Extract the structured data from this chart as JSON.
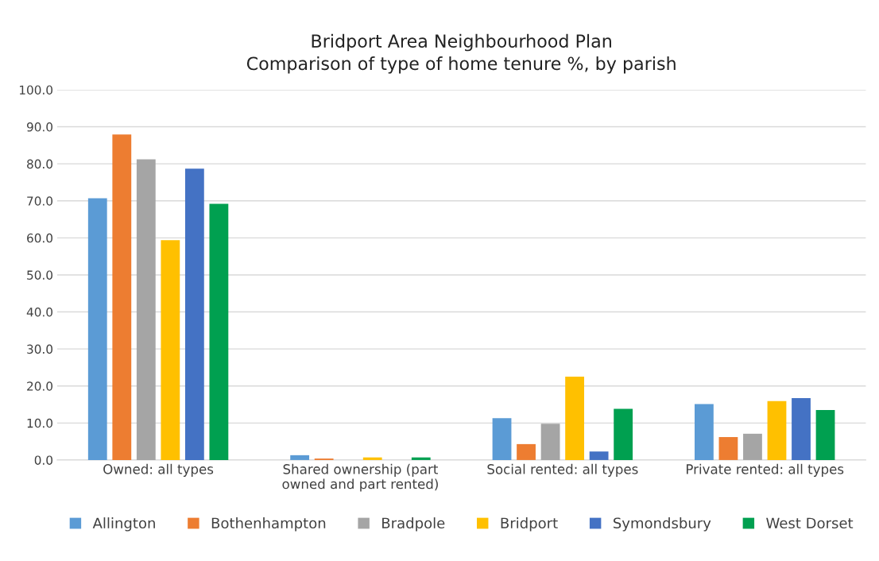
{
  "chart_data": {
    "type": "bar",
    "title": "Bridport Area Neighbourhood Plan\nComparison of type of home tenure %, by parish",
    "categories": [
      "Owned: all types",
      "Shared ownership (part\nowned and part rented)",
      "Social rented: all types",
      "Private rented: all types"
    ],
    "series": [
      {
        "name": "Allington",
        "color": "#5b9bd5",
        "values": [
          70.7,
          1.3,
          11.3,
          15.1
        ]
      },
      {
        "name": "Bothenhampton",
        "color": "#ed7d31",
        "values": [
          87.9,
          0.4,
          4.3,
          6.2
        ]
      },
      {
        "name": "Bradpole",
        "color": "#a5a5a5",
        "values": [
          81.2,
          0,
          9.8,
          7.1
        ]
      },
      {
        "name": "Bridport",
        "color": "#ffc000",
        "values": [
          59.4,
          0.7,
          22.5,
          15.9
        ]
      },
      {
        "name": "Symondsbury",
        "color": "#4472c4",
        "values": [
          78.7,
          0,
          2.3,
          16.7
        ]
      },
      {
        "name": "West Dorset",
        "color": "#00a050",
        "values": [
          69.2,
          0.7,
          13.8,
          13.5
        ]
      }
    ],
    "ylim": [
      0,
      100
    ],
    "yticks": [
      {
        "value": 0,
        "label": "0.0"
      },
      {
        "value": 10,
        "label": "10.0"
      },
      {
        "value": 20,
        "label": "20.0"
      },
      {
        "value": 30,
        "label": "30.0"
      },
      {
        "value": 40,
        "label": "40.0"
      },
      {
        "value": 50,
        "label": "50.0"
      },
      {
        "value": 60,
        "label": "60.0"
      },
      {
        "value": 70,
        "label": "70.0"
      },
      {
        "value": 80,
        "label": "80.0"
      },
      {
        "value": 90,
        "label": "90.0"
      },
      {
        "value": 100,
        "label": "100.0"
      }
    ],
    "grid": "y",
    "legend": "bottom"
  }
}
